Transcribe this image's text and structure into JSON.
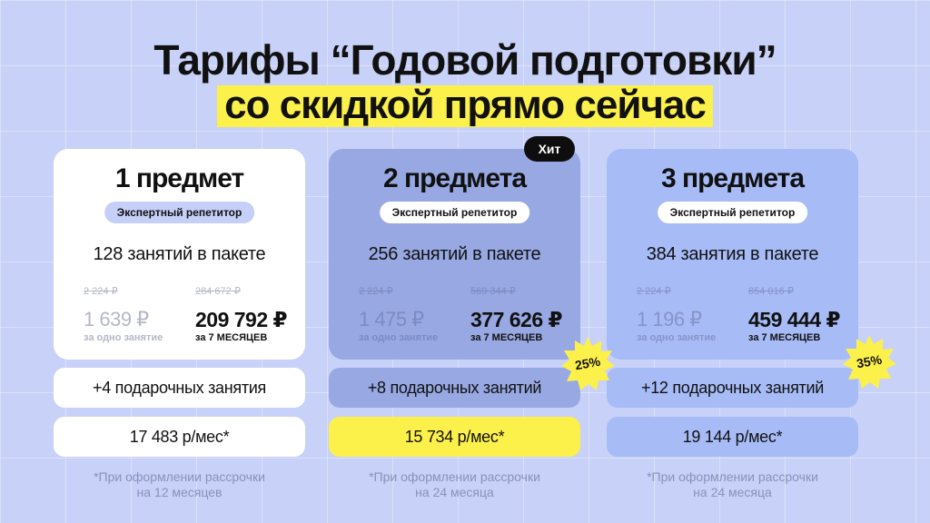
{
  "heading": {
    "line1": "Тарифы “Годовой подготовки”",
    "line2": "со скидкой прямо сейчас"
  },
  "colors": {
    "background": "#c8d1f8",
    "highlight_yellow": "#fcf04a",
    "card_white": "#ffffff",
    "card_mid": "#97a8e3",
    "card_light": "#a7bbf7",
    "badge_black": "#0e0e0e"
  },
  "plans": [
    {
      "title": "1 предмет",
      "tutor": "Экспертный репетитор",
      "lessons": "128 занятий в пакете",
      "old_per_lesson": "2 224 ₽",
      "old_total": "284 672 ₽",
      "per_lesson": "1 639 ₽",
      "per_lesson_label": "за одно занятие",
      "total": "209 792 ₽",
      "total_label": "за 7 МЕСЯЦЕВ",
      "bonus": "+4 подарочных занятия",
      "monthly": "17 483 р/мес*",
      "note_line1": "*При оформлении рассрочки",
      "note_line2": "на 12 месяцев"
    },
    {
      "title": "2 предмета",
      "badge": "Хит",
      "discount": "25%",
      "tutor": "Экспертный репетитор",
      "lessons": "256 занятий в пакете",
      "old_per_lesson": "2 224 ₽",
      "old_total": "569 344 ₽",
      "per_lesson": "1 475 ₽",
      "per_lesson_label": "за одно занятие",
      "total": "377 626 ₽",
      "total_label": "за 7 МЕСЯЦЕВ",
      "bonus": "+8 подарочных занятий",
      "monthly": "15 734 р/мес*",
      "note_line1": "*При оформлении рассрочки",
      "note_line2": "на 24 месяца"
    },
    {
      "title": "3 предмета",
      "discount": "35%",
      "tutor": "Экспертный репетитор",
      "lessons": "384 занятия в пакете",
      "old_per_lesson": "2 224 ₽",
      "old_total": "854 016 ₽",
      "per_lesson": "1 196 ₽",
      "per_lesson_label": "за одно занятие",
      "total": "459 444 ₽",
      "total_label": "за 7 МЕСЯЦЕВ",
      "bonus": "+12 подарочных занятий",
      "monthly": "19 144 р/мес*",
      "note_line1": "*При оформлении рассрочки",
      "note_line2": "на 24 месяца"
    }
  ]
}
